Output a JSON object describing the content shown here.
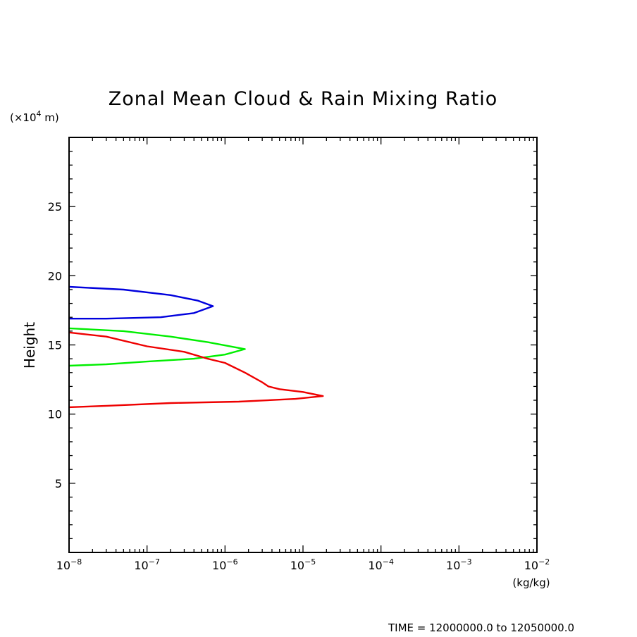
{
  "chart_data": {
    "type": "line",
    "title": "Zonal Mean Cloud & Rain Mixing Ratio",
    "ylabel": "Height",
    "y_unit_prefix": "(×10",
    "y_unit_exp": "4",
    "y_unit_suffix": " m)",
    "xlabel_unit": "(kg/kg)",
    "x_scale": "log",
    "xlim": [
      1e-08,
      0.01
    ],
    "ylim": [
      0,
      30
    ],
    "y_ticks": [
      5,
      10,
      15,
      20,
      25
    ],
    "x_ticks": [
      {
        "value": 1e-08,
        "base": "10",
        "exp": "−8"
      },
      {
        "value": 1e-07,
        "base": "10",
        "exp": "−7"
      },
      {
        "value": 1e-06,
        "base": "10",
        "exp": "−6"
      },
      {
        "value": 1e-05,
        "base": "10",
        "exp": "−5"
      },
      {
        "value": 0.0001,
        "base": "10",
        "exp": "−4"
      },
      {
        "value": 0.001,
        "base": "10",
        "exp": "−3"
      },
      {
        "value": 0.01,
        "base": "10",
        "exp": "−2"
      }
    ],
    "grid": false,
    "legend": "none",
    "series": [
      {
        "color": "#0000dd",
        "points": [
          [
            1e-08,
            19.2
          ],
          [
            5e-08,
            19.0
          ],
          [
            2e-07,
            18.6
          ],
          [
            4.5e-07,
            18.2
          ],
          [
            7e-07,
            17.8
          ],
          [
            4e-07,
            17.3
          ],
          [
            1.5e-07,
            17.0
          ],
          [
            3e-08,
            16.9
          ],
          [
            1e-08,
            16.9
          ]
        ]
      },
      {
        "color": "#00ee00",
        "points": [
          [
            1e-08,
            16.2
          ],
          [
            5e-08,
            16.0
          ],
          [
            2e-07,
            15.6
          ],
          [
            6e-07,
            15.2
          ],
          [
            1.8e-06,
            14.7
          ],
          [
            1e-06,
            14.3
          ],
          [
            4e-07,
            14.0
          ],
          [
            1e-07,
            13.8
          ],
          [
            3e-08,
            13.6
          ],
          [
            1e-08,
            13.5
          ]
        ]
      },
      {
        "color": "#ee0000",
        "points": [
          [
            1e-08,
            15.9
          ],
          [
            3e-08,
            15.6
          ],
          [
            1e-07,
            14.9
          ],
          [
            3e-07,
            14.5
          ],
          [
            6e-07,
            14.0
          ],
          [
            1e-06,
            13.7
          ],
          [
            1.8e-06,
            13.0
          ],
          [
            3e-06,
            12.3
          ],
          [
            3.6e-06,
            12.0
          ],
          [
            5e-06,
            11.8
          ],
          [
            1e-05,
            11.6
          ],
          [
            1.8e-05,
            11.3
          ],
          [
            8e-06,
            11.1
          ],
          [
            1.5e-06,
            10.9
          ],
          [
            2e-07,
            10.8
          ],
          [
            3e-08,
            10.6
          ],
          [
            1e-08,
            10.5
          ]
        ]
      }
    ]
  },
  "footer": {
    "time_label": "TIME = 12000000.0 to 12050000.0"
  }
}
